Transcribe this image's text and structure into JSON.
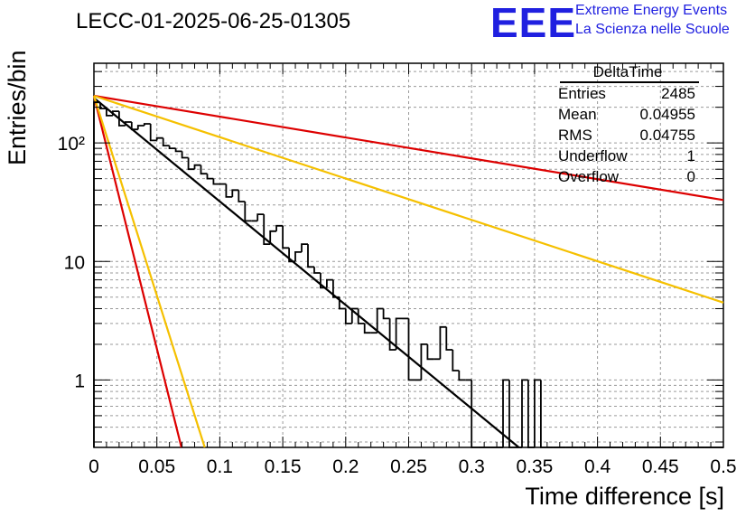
{
  "title": "LECC-01-2025-06-25-01305",
  "logo": {
    "text": "EEE",
    "line1": "Extreme Energy Events",
    "line2": "La Scienza nelle Scuole",
    "color": "#2020e0"
  },
  "stats": {
    "name": "DeltaTime",
    "rows": [
      {
        "label": "Entries",
        "value": "2485"
      },
      {
        "label": "Mean",
        "value": "0.04955"
      },
      {
        "label": "RMS",
        "value": "0.04755"
      },
      {
        "label": "Underflow",
        "value": "1"
      },
      {
        "label": "Overflow",
        "value": "0"
      }
    ]
  },
  "chart_data": {
    "type": "line",
    "title": "LECC-01-2025-06-25-01305",
    "xlabel": "Time difference [s]",
    "ylabel": "Entries/bin",
    "xlim": [
      0,
      0.5
    ],
    "ylim": [
      0.27,
      470
    ],
    "yscale": "log",
    "grid": true,
    "xticks": [
      "0",
      "0.05",
      "0.1",
      "0.15",
      "0.2",
      "0.25",
      "0.3",
      "0.35",
      "0.4",
      "0.45",
      "0.5"
    ],
    "yticks": [
      {
        "value": 1,
        "label": "1"
      },
      {
        "value": 10,
        "label": "10"
      },
      {
        "value": 100,
        "label": "10²"
      }
    ],
    "histogram": {
      "bin_width": 0.005,
      "color": "#000000",
      "counts": [
        220,
        195,
        170,
        185,
        140,
        150,
        130,
        140,
        145,
        105,
        110,
        95,
        90,
        85,
        75,
        60,
        65,
        55,
        50,
        45,
        45,
        35,
        40,
        32,
        22,
        22,
        25,
        14,
        18,
        20,
        13,
        10,
        12,
        14,
        9,
        8,
        6,
        7,
        5,
        4,
        3,
        4,
        3,
        2.5,
        2.5,
        4,
        3.3,
        1.8,
        3.3,
        3.3,
        1,
        1,
        2,
        1.5,
        1.5,
        2.8,
        1.8,
        1.2,
        1,
        1,
        0.2,
        0.2,
        0.2,
        0.2,
        0.2,
        1,
        0.2,
        0.2,
        1,
        0.2,
        1,
        0.2,
        0.2,
        0.2,
        0.2,
        0.2,
        0.2,
        0.2,
        0.2,
        0.2,
        0.2,
        0.2,
        0.2,
        0.2,
        0.2,
        0.2,
        0.2,
        0.2,
        0.2,
        0.2,
        0.2,
        0.2,
        0.2,
        0.2,
        0.2,
        0.2,
        0.2,
        0.2,
        0.2,
        0.2
      ]
    },
    "series": [
      {
        "color": "#000000",
        "points": [
          [
            0,
            240
          ],
          [
            0.3375,
            0.27
          ]
        ]
      },
      {
        "color": "#dd0000",
        "points": [
          [
            0,
            250
          ],
          [
            0.5,
            33
          ]
        ]
      },
      {
        "color": "#f5c000",
        "points": [
          [
            0,
            250
          ],
          [
            0.5,
            4.5
          ]
        ]
      },
      {
        "color": "#dd0000",
        "points": [
          [
            0,
            250
          ],
          [
            0.0695,
            0.27
          ]
        ]
      },
      {
        "color": "#f5c000",
        "points": [
          [
            0,
            250
          ],
          [
            0.088,
            0.27
          ]
        ]
      }
    ]
  }
}
